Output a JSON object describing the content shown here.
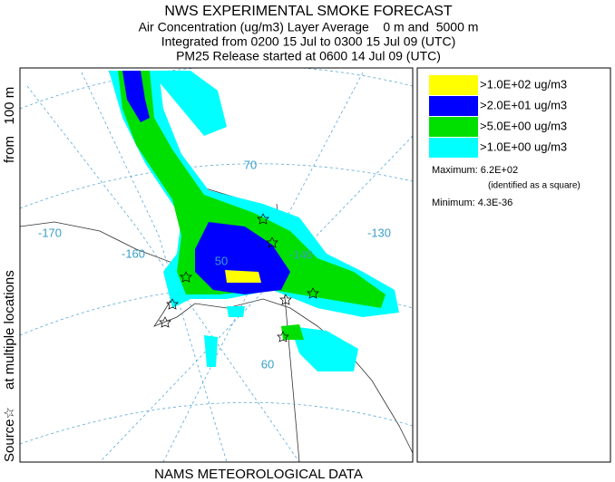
{
  "header": {
    "title": "NWS EXPERIMENTAL SMOKE FORECAST",
    "lines": [
      "Air Concentration (ug/m3) Layer Average    0 m and  5000 m",
      "Integrated from 0200 15 Jul to 0300 15 Jul 09 (UTC)",
      "PM25 Release started at 0600 14 Jul 09 (UTC)"
    ]
  },
  "legend": {
    "entries": [
      {
        "label": ">1.0E+02 ug/m3",
        "color": "#ffff00"
      },
      {
        "label": ">2.0E+01 ug/m3",
        "color": "#0000ff"
      },
      {
        "label": ">5.0E+00 ug/m3",
        "color": "#00e000"
      },
      {
        "label": ">1.0E+00 ug/m3",
        "color": "#00ffff"
      }
    ],
    "maximum": "Maximum: 6.2E+02",
    "maximum_note": "(identified as a square)",
    "minimum": "Minimum: 4.3E-36"
  },
  "map": {
    "lon_labels": [
      "-170",
      "-160",
      "-140",
      "-130"
    ],
    "lat_labels": [
      "70",
      "60",
      "50"
    ]
  },
  "side_label": [
    "Source☆",
    "at multiple locations",
    "from   100 m"
  ],
  "footer": "NAMS METEOROLOGICAL DATA"
}
